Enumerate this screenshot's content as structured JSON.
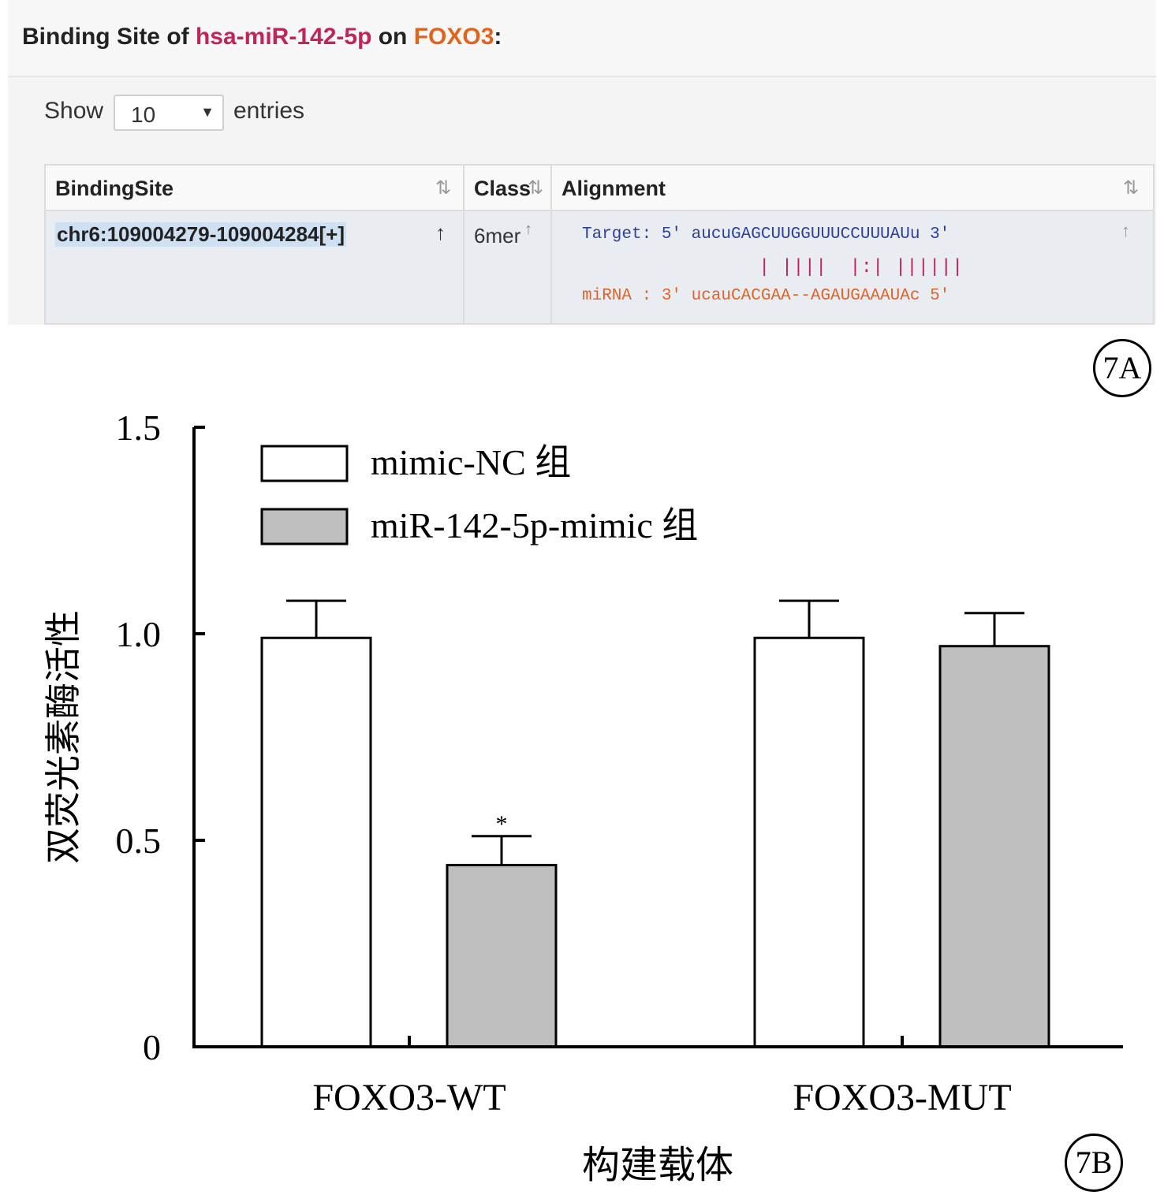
{
  "panelA": {
    "title_prefix": "Binding Site of ",
    "mirna": "hsa-miR-142-5p",
    "title_mid": " on ",
    "gene": "FOXO3",
    "title_suffix": ":",
    "show_label": "Show",
    "entries_select_value": "10",
    "entries_label": "entries",
    "columns": [
      "BindingSite",
      "Class",
      "Alignment"
    ],
    "row": {
      "binding_site": "chr6:109004279-109004284[+]",
      "class": "6mer",
      "target_line": "Target: 5' aucuGAGCUUGGUUUCCUUUAUu 3'",
      "pairing_line": "| ||||  |:| ||||||",
      "mirna_line": "miRNA : 3' ucauCACGAA--AGAUGAAAUAc 5'"
    },
    "badge": "7A"
  },
  "panelB_badge": "7B",
  "chart_data": {
    "type": "bar",
    "categories": [
      "FOXO3-WT",
      "FOXO3-MUT"
    ],
    "series": [
      {
        "name": "mimic-NC 组",
        "values": [
          0.99,
          0.99
        ],
        "errors": [
          0.09,
          0.09
        ],
        "color": "#ffffff"
      },
      {
        "name": "miR-142-5p-mimic 组",
        "values": [
          0.44,
          0.97
        ],
        "errors": [
          0.07,
          0.08
        ],
        "color": "#bebebe"
      }
    ],
    "annotations": [
      {
        "category": "FOXO3-WT",
        "series": 1,
        "text": "*"
      }
    ],
    "ylabel": "双荧光素酶活性",
    "xlabel": "构建载体",
    "ylim": [
      0,
      1.5
    ],
    "yticks": [
      0,
      0.5,
      1.0,
      1.5
    ],
    "ytick_labels": [
      "0",
      "0.5",
      "1.0",
      "1.5"
    ],
    "legend_position": "top-left",
    "grid": false
  }
}
